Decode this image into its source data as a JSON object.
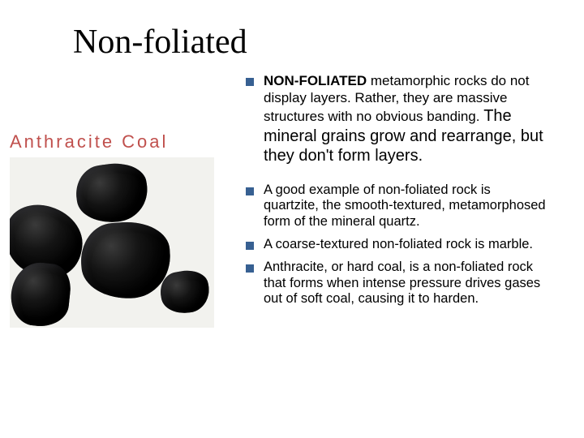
{
  "slide": {
    "title": "Non-foliated",
    "image_label": "Anthracite Coal",
    "bullet_color": "#376092",
    "label_color": "#c0504d",
    "bullets_a": [
      {
        "bold_lead": "NON-FOLIATED",
        "text_small": " metamorphic rocks do not display layers. Rather, they are massive structures with no obvious banding. ",
        "text_large": "The mineral grains grow and rearrange, but they don't form layers."
      }
    ],
    "bullets_b": [
      {
        "text": "A good example of non-foliated rock is quartzite, the smooth-textured, metamorphosed form of the mineral quartz."
      },
      {
        "text": " A coarse-textured non-foliated rock is marble."
      },
      {
        "text": "Anthracite, or hard coal, is a non-foliated rock that forms when intense pressure drives gases out of soft coal, causing it to harden."
      }
    ]
  }
}
